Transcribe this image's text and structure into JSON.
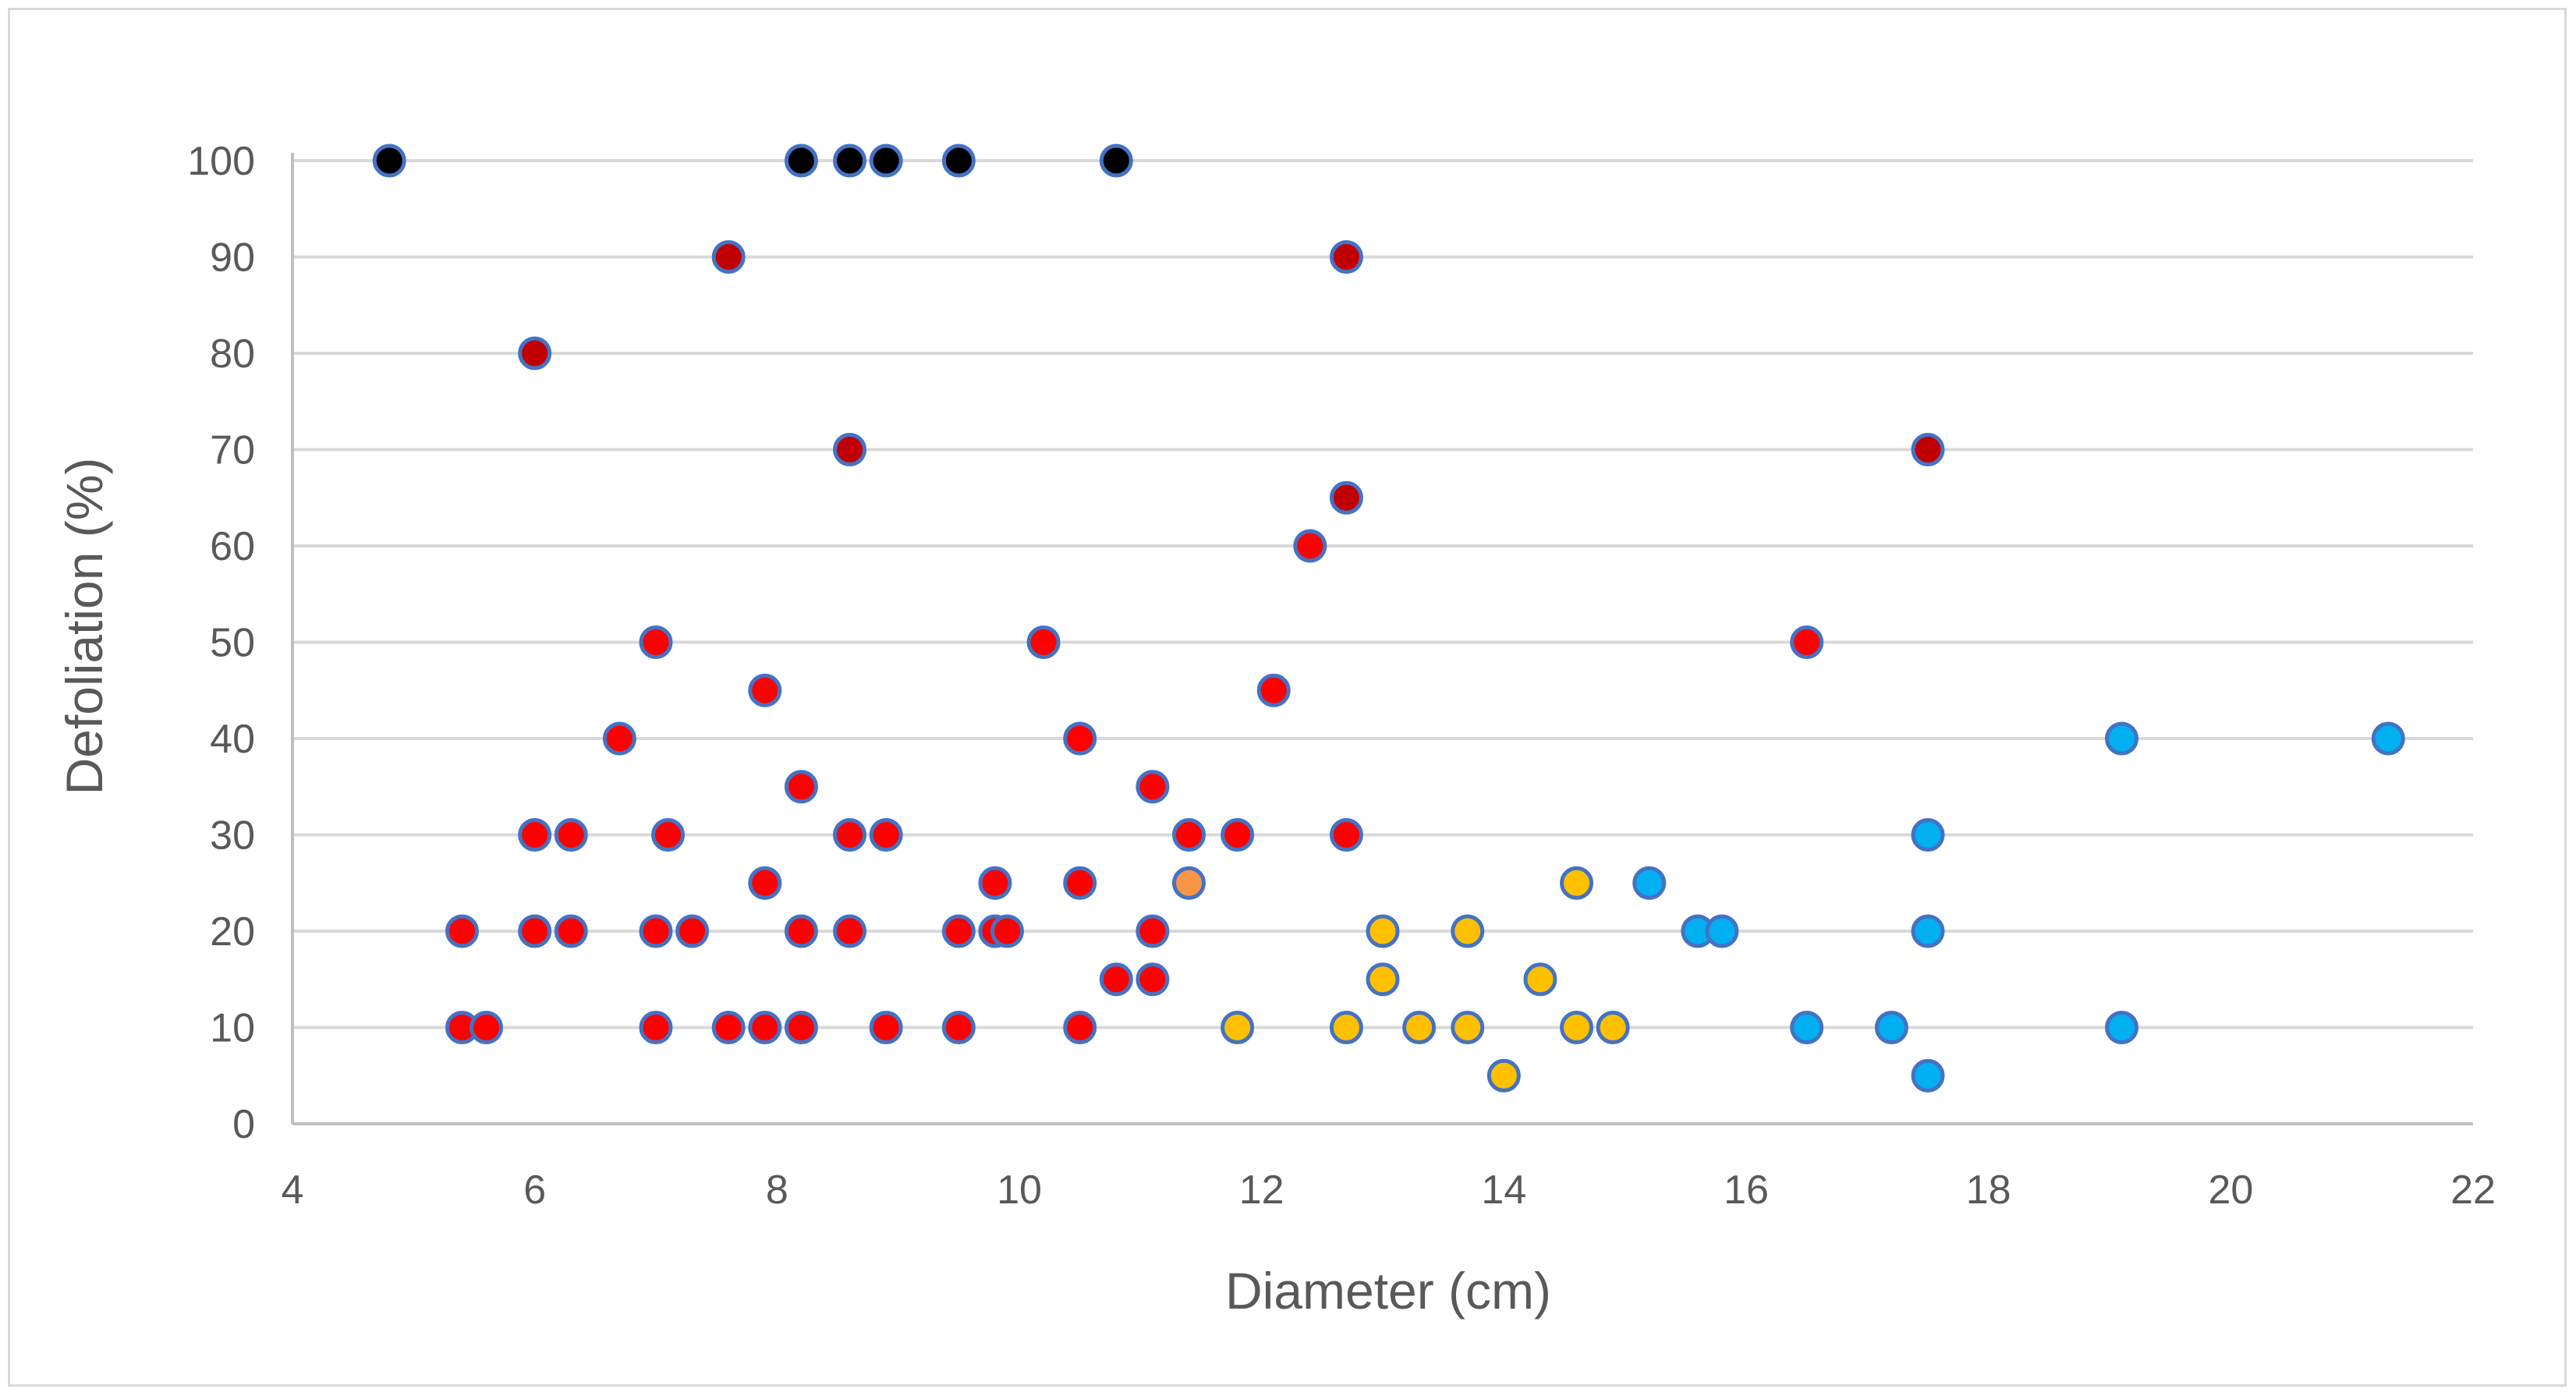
{
  "chart_data": {
    "type": "scatter",
    "title": "",
    "xlabel": "Diameter (cm)",
    "ylabel": "Defoliation (%)",
    "xlim": [
      4,
      22
    ],
    "ylim": [
      0,
      100
    ],
    "xticks": [
      4,
      6,
      8,
      10,
      12,
      14,
      16,
      18,
      20,
      22
    ],
    "yticks": [
      0,
      10,
      20,
      30,
      40,
      50,
      60,
      70,
      80,
      90,
      100
    ],
    "grid": "horizontal",
    "legend": "none",
    "marker_edge_color": "#4472c4",
    "series": [
      {
        "color": "#000000",
        "points": [
          [
            4.8,
            100
          ],
          [
            8.2,
            100
          ],
          [
            8.6,
            100
          ],
          [
            8.9,
            100
          ],
          [
            9.5,
            100
          ],
          [
            10.8,
            100
          ]
        ]
      },
      {
        "color": "#c00000",
        "points": [
          [
            7.6,
            90
          ],
          [
            12.7,
            90
          ],
          [
            6.0,
            80
          ],
          [
            8.6,
            70
          ],
          [
            17.5,
            70
          ],
          [
            12.7,
            65
          ]
        ]
      },
      {
        "color": "#ff0000",
        "points": [
          [
            12.4,
            60
          ],
          [
            7.0,
            50
          ],
          [
            10.2,
            50
          ],
          [
            16.5,
            50
          ],
          [
            7.9,
            45
          ],
          [
            12.1,
            45
          ],
          [
            6.7,
            40
          ],
          [
            10.5,
            40
          ],
          [
            8.2,
            35
          ],
          [
            11.1,
            35
          ],
          [
            6.0,
            30
          ],
          [
            6.3,
            30
          ],
          [
            7.1,
            30
          ],
          [
            8.6,
            30
          ],
          [
            8.9,
            30
          ],
          [
            11.4,
            30
          ],
          [
            11.8,
            30
          ],
          [
            12.7,
            30
          ],
          [
            7.9,
            25
          ],
          [
            9.8,
            25
          ],
          [
            10.5,
            25
          ],
          [
            5.4,
            20
          ],
          [
            6.0,
            20
          ],
          [
            6.3,
            20
          ],
          [
            7.0,
            20
          ],
          [
            7.3,
            20
          ],
          [
            8.2,
            20
          ],
          [
            8.6,
            20
          ],
          [
            9.5,
            20
          ],
          [
            9.8,
            20
          ],
          [
            9.9,
            20
          ],
          [
            11.1,
            20
          ],
          [
            10.8,
            15
          ],
          [
            11.1,
            15
          ],
          [
            5.4,
            10
          ],
          [
            5.6,
            10
          ],
          [
            7.0,
            10
          ],
          [
            7.6,
            10
          ],
          [
            7.9,
            10
          ],
          [
            8.2,
            10
          ],
          [
            8.9,
            10
          ],
          [
            9.5,
            10
          ],
          [
            10.5,
            10
          ]
        ]
      },
      {
        "color": "#f79646",
        "points": [
          [
            11.4,
            25
          ]
        ]
      },
      {
        "color": "#ffc000",
        "points": [
          [
            14.6,
            25
          ],
          [
            13.0,
            20
          ],
          [
            13.7,
            20
          ],
          [
            13.0,
            15
          ],
          [
            14.3,
            15
          ],
          [
            11.8,
            10
          ],
          [
            12.7,
            10
          ],
          [
            13.3,
            10
          ],
          [
            13.7,
            10
          ],
          [
            14.6,
            10
          ],
          [
            14.9,
            10
          ],
          [
            14.0,
            5
          ]
        ]
      },
      {
        "color": "#00b0f0",
        "points": [
          [
            19.1,
            40
          ],
          [
            21.3,
            40
          ],
          [
            17.5,
            30
          ],
          [
            15.2,
            25
          ],
          [
            15.6,
            20
          ],
          [
            15.8,
            20
          ],
          [
            17.5,
            20
          ],
          [
            16.5,
            10
          ],
          [
            17.2,
            10
          ],
          [
            19.1,
            10
          ],
          [
            17.5,
            5
          ]
        ]
      }
    ]
  }
}
